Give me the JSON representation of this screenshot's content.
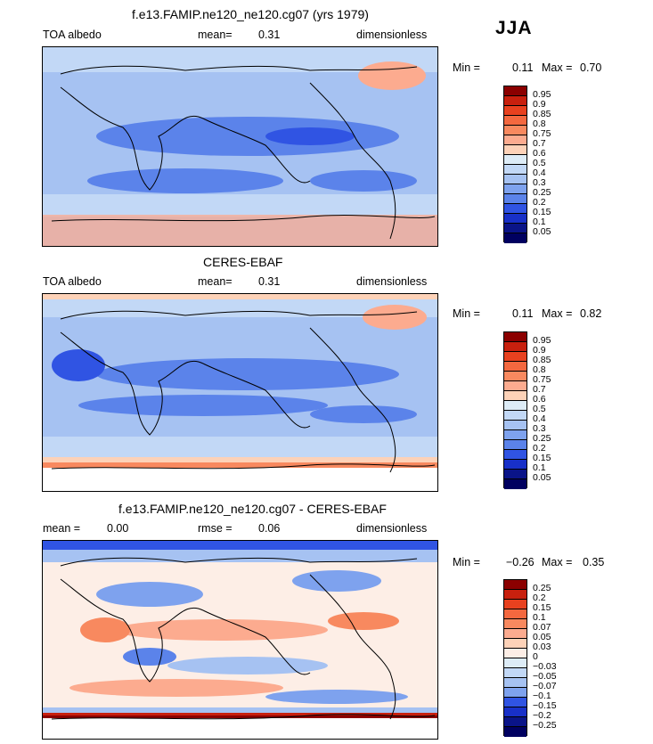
{
  "season": "JJA",
  "panels": [
    {
      "title": "f.e13.FAMIP.ne120_ne120.cg07 (yrs 1979)",
      "left": "TOA albedo",
      "center_label": "mean=",
      "center_value": "0.31",
      "right": "dimensionless",
      "min_label": "Min =",
      "min_value": "0.11",
      "max_label": "Max =",
      "max_value": "0.70",
      "ticks": [
        "0.95",
        "0.9",
        "0.85",
        "0.8",
        "0.75",
        "0.7",
        "0.6",
        "0.5",
        "0.4",
        "0.3",
        "0.25",
        "0.2",
        "0.15",
        "0.1",
        "0.05"
      ],
      "colors": [
        "#8b0000",
        "#c8200e",
        "#e8411f",
        "#f4683f",
        "#f8895f",
        "#fcab8f",
        "#fdd2b8",
        "#ddecf7",
        "#c2d8f6",
        "#a6c2f2",
        "#7ea2ee",
        "#5b83ea",
        "#3054e3",
        "#1830c8",
        "#0a1488",
        "#000060"
      ]
    },
    {
      "title": "CERES-EBAF",
      "left": "TOA albedo",
      "center_label": "mean=",
      "center_value": "0.31",
      "right": "dimensionless",
      "min_label": "Min =",
      "min_value": "0.11",
      "max_label": "Max =",
      "max_value": "0.82",
      "ticks": [
        "0.95",
        "0.9",
        "0.85",
        "0.8",
        "0.75",
        "0.7",
        "0.6",
        "0.5",
        "0.4",
        "0.3",
        "0.25",
        "0.2",
        "0.15",
        "0.1",
        "0.05"
      ],
      "colors": [
        "#8b0000",
        "#c8200e",
        "#e8411f",
        "#f4683f",
        "#f8895f",
        "#fcab8f",
        "#fdd2b8",
        "#ddecf7",
        "#c2d8f6",
        "#a6c2f2",
        "#7ea2ee",
        "#5b83ea",
        "#3054e3",
        "#1830c8",
        "#0a1488",
        "#000060"
      ]
    },
    {
      "title": "f.e13.FAMIP.ne120_ne120.cg07 - CERES-EBAF",
      "left_label": "mean =",
      "left_value": "0.00",
      "center_label": "rmse =",
      "center_value": "0.06",
      "right": "dimensionless",
      "min_label": "Min =",
      "min_value": "−0.26",
      "max_label": "Max =",
      "max_value": "0.35",
      "ticks": [
        "0.25",
        "0.2",
        "0.15",
        "0.1",
        "0.07",
        "0.05",
        "0.03",
        "0",
        "−0.03",
        "−0.05",
        "−0.07",
        "−0.1",
        "−0.15",
        "−0.2",
        "−0.25"
      ],
      "colors": [
        "#8b0000",
        "#c8200e",
        "#e8411f",
        "#f4683f",
        "#f8895f",
        "#fcab8f",
        "#fdd2b8",
        "#fdeee6",
        "#ddecf7",
        "#c2d8f6",
        "#a6c2f2",
        "#7ea2ee",
        "#3054e3",
        "#1830c8",
        "#0a1488",
        "#000060"
      ]
    }
  ]
}
